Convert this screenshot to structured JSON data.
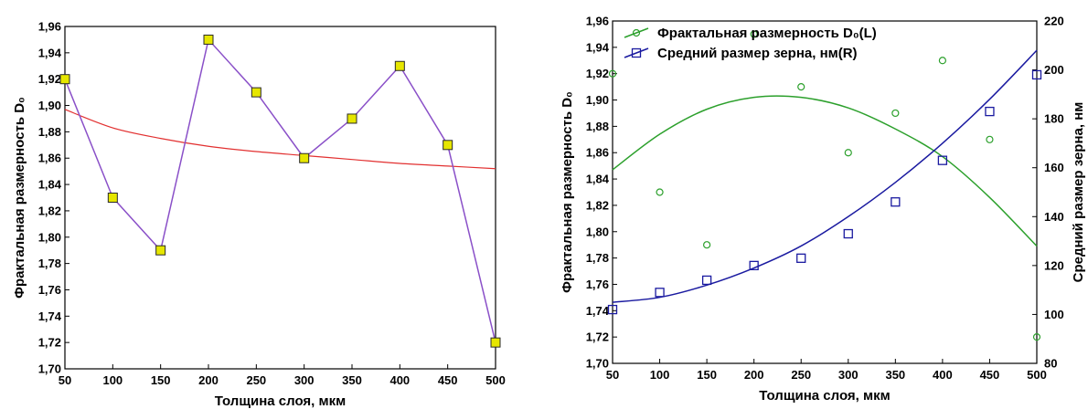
{
  "chart_data": [
    {
      "type": "line",
      "xlabel": "Толщина слоя, мкм",
      "ylabel": "Фрактальная размерность D₀",
      "xlim": [
        50,
        500
      ],
      "ylim": [
        1.7,
        1.96
      ],
      "x_ticks": [
        "50",
        "100",
        "150",
        "200",
        "250",
        "300",
        "350",
        "400",
        "450",
        "500"
      ],
      "y_ticks": [
        "1,70",
        "1,72",
        "1,74",
        "1,76",
        "1,78",
        "1,80",
        "1,82",
        "1,84",
        "1,86",
        "1,88",
        "1,90",
        "1,92",
        "1,94",
        "1,96"
      ],
      "grid": false,
      "series": [
        {
          "kind": "markers+line",
          "color": "#8a50c8",
          "marker_fill": "#e6e600",
          "marker_edge": "#2a2a2a",
          "x": [
            50,
            100,
            150,
            200,
            250,
            300,
            350,
            400,
            450,
            500
          ],
          "y": [
            1.92,
            1.83,
            1.79,
            1.95,
            1.91,
            1.86,
            1.89,
            1.93,
            1.87,
            1.72
          ]
        },
        {
          "kind": "trend",
          "color": "#e23030",
          "x": [
            50,
            100,
            150,
            200,
            250,
            300,
            350,
            400,
            450,
            500
          ],
          "y": [
            1.897,
            1.883,
            1.875,
            1.869,
            1.865,
            1.862,
            1.859,
            1.856,
            1.854,
            1.852
          ]
        }
      ]
    },
    {
      "type": "scatter",
      "xlabel": "Толщина слоя, мкм",
      "ylabel": "Фрактальная размерность D₀",
      "y2label": "Средний размер зерна, нм",
      "xlim": [
        50,
        500
      ],
      "ylim": [
        1.7,
        1.96
      ],
      "y2lim": [
        80,
        220
      ],
      "x_ticks": [
        "50",
        "100",
        "150",
        "200",
        "250",
        "300",
        "350",
        "400",
        "450",
        "500"
      ],
      "y_ticks": [
        "1,70",
        "1,72",
        "1,74",
        "1,76",
        "1,78",
        "1,80",
        "1,82",
        "1,84",
        "1,86",
        "1,88",
        "1,90",
        "1,92",
        "1,94",
        "1,96"
      ],
      "y2_ticks": [
        "80",
        "100",
        "120",
        "140",
        "160",
        "180",
        "200",
        "220"
      ],
      "legend_position": "top-left",
      "grid": false,
      "series": [
        {
          "name": "Фрактальная размерность D₀(L)",
          "axis": "left",
          "marker": "circle",
          "color": "#2ca02c",
          "x": [
            50,
            100,
            150,
            200,
            250,
            300,
            350,
            400,
            450,
            500
          ],
          "y": [
            1.92,
            1.83,
            1.79,
            1.95,
            1.91,
            1.86,
            1.89,
            1.93,
            1.87,
            1.72
          ],
          "fit": {
            "x": [
              50,
              100,
              150,
              200,
              250,
              300,
              350,
              400,
              450,
              500
            ],
            "y": [
              1.847,
              1.874,
              1.893,
              1.902,
              1.902,
              1.894,
              1.878,
              1.857,
              1.826,
              1.789
            ]
          }
        },
        {
          "name": "Средний размер зерна, нм(R)",
          "axis": "right",
          "marker": "square",
          "color": "#1a1aa0",
          "x": [
            50,
            100,
            150,
            200,
            250,
            300,
            350,
            400,
            450,
            500
          ],
          "y": [
            102,
            109,
            114,
            120,
            123,
            133,
            146,
            163,
            183,
            198
          ],
          "fit": {
            "x": [
              50,
              100,
              150,
              200,
              250,
              300,
              350,
              400,
              450,
              500
            ],
            "y": [
              105,
              107,
              112,
              119,
              128,
              140,
              154,
              170,
              188,
              208
            ]
          }
        }
      ]
    }
  ]
}
